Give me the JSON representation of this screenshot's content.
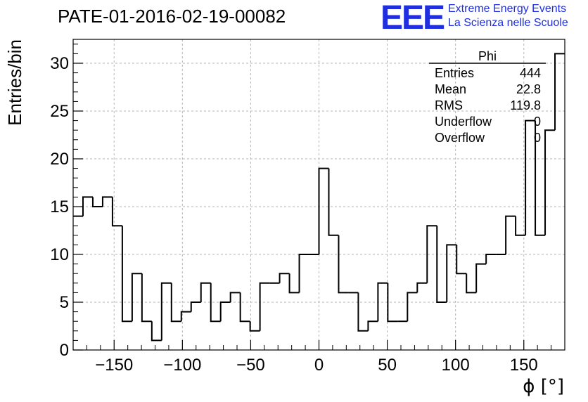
{
  "header": {
    "title": "PATE-01-2016-02-19-00082",
    "logo_text": "EEE",
    "brand_line1": "Extreme Energy Events",
    "brand_line2": "La Scienza nelle Scuole",
    "brand_color": "#1f2fe0"
  },
  "stats_box": {
    "name": "Phi",
    "rows": [
      {
        "label": "Entries",
        "value": "444"
      },
      {
        "label": "Mean",
        "value": "22.8"
      },
      {
        "label": "RMS",
        "value": "119.8"
      },
      {
        "label": "Underflow",
        "value": "0"
      },
      {
        "label": "Overflow",
        "value": "0"
      }
    ]
  },
  "chart_data": {
    "type": "bar",
    "style": "step-histogram",
    "xlabel": "ϕ [°]",
    "ylabel": "Entries/bin",
    "xlim": [
      -180,
      180
    ],
    "ylim": [
      0,
      32.5
    ],
    "bin_width": 7.2,
    "x_ticks": [
      -150,
      -100,
      -50,
      0,
      50,
      100,
      150
    ],
    "x_tick_labels": [
      "−150",
      "−100",
      "−50",
      "0",
      "50",
      "100",
      "150"
    ],
    "y_ticks": [
      0,
      5,
      10,
      15,
      20,
      25,
      30
    ],
    "y_tick_labels": [
      "0",
      "5",
      "10",
      "15",
      "20",
      "25",
      "30"
    ],
    "grid": true,
    "values": [
      14,
      16,
      15,
      16,
      13,
      3,
      8,
      3,
      1,
      7,
      3,
      4,
      5,
      7,
      3,
      5,
      6,
      3,
      2,
      7,
      7,
      8,
      6,
      10,
      10,
      19,
      12,
      6,
      6,
      2,
      3,
      7,
      3,
      3,
      6,
      7,
      13,
      5,
      11,
      8,
      6,
      9,
      10,
      10,
      14,
      12,
      24,
      12,
      23,
      31
    ]
  }
}
